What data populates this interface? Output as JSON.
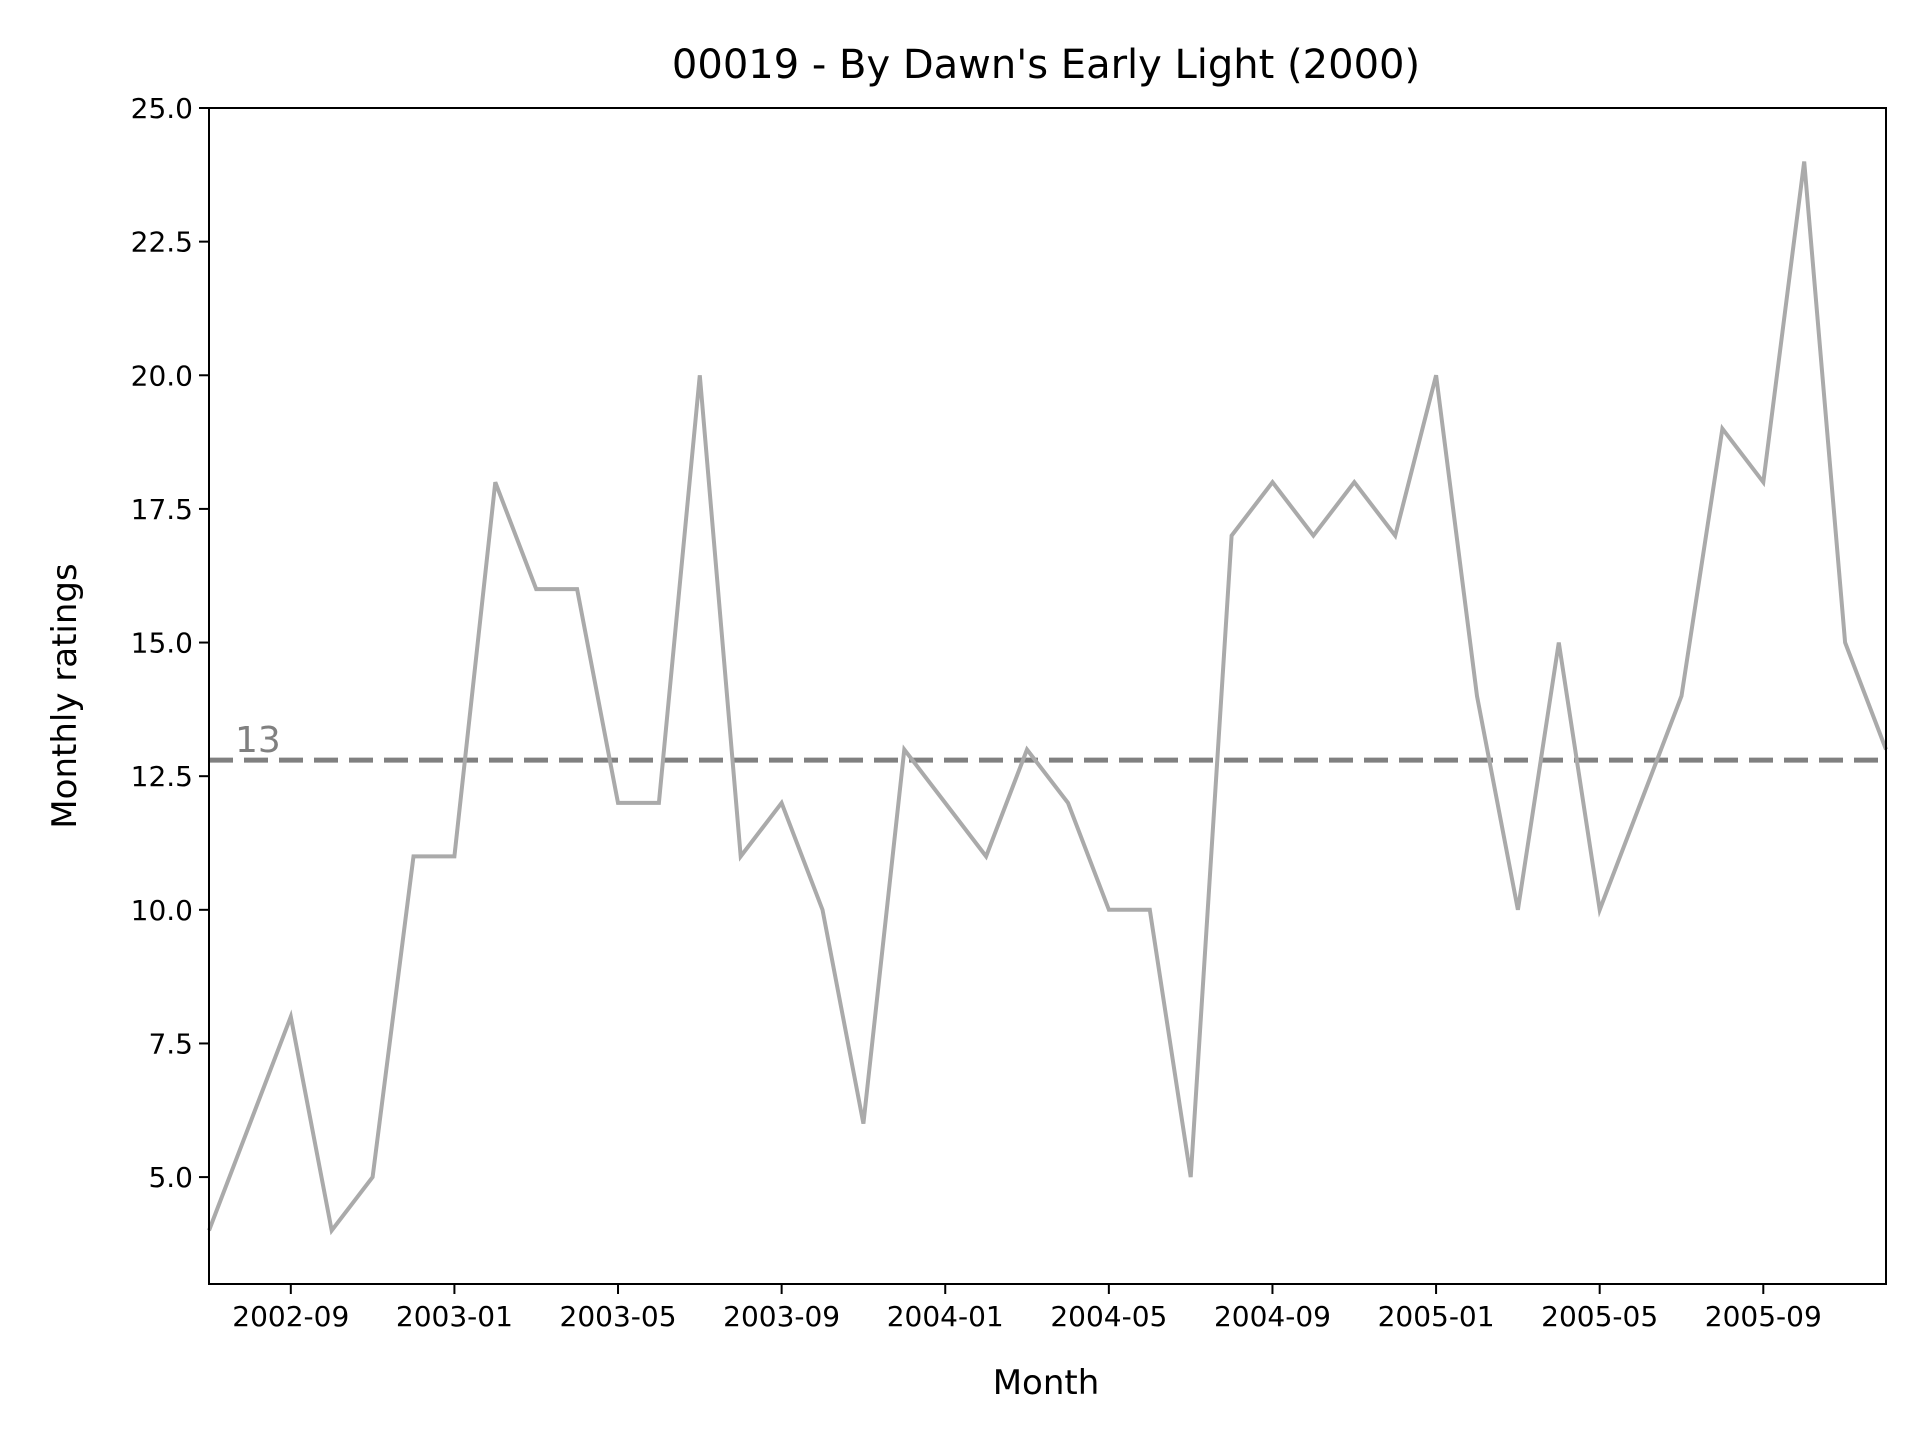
{
  "chart_data": {
    "type": "line",
    "title": "00019 - By Dawn's Early Light (2000)",
    "xlabel": "Month",
    "ylabel": "Monthly ratings",
    "x": [
      "2002-07",
      "2002-08",
      "2002-09",
      "2002-10",
      "2002-11",
      "2002-12",
      "2003-01",
      "2003-02",
      "2003-03",
      "2003-04",
      "2003-05",
      "2003-06",
      "2003-07",
      "2003-08",
      "2003-09",
      "2003-10",
      "2003-11",
      "2003-12",
      "2004-01",
      "2004-02",
      "2004-03",
      "2004-04",
      "2004-05",
      "2004-06",
      "2004-07",
      "2004-08",
      "2004-09",
      "2004-10",
      "2004-11",
      "2004-12",
      "2005-01",
      "2005-02",
      "2005-03",
      "2005-04",
      "2005-05",
      "2005-06",
      "2005-07",
      "2005-08",
      "2005-09",
      "2005-10",
      "2005-11",
      "2005-12"
    ],
    "series": [
      {
        "values": [
          4,
          6,
          8,
          4,
          5,
          11,
          11,
          18,
          16,
          16,
          12,
          12,
          20,
          11,
          12,
          10,
          6,
          13,
          12,
          11,
          13,
          12,
          10,
          10,
          5,
          17,
          18,
          17,
          18,
          17,
          20,
          14,
          10,
          15,
          10,
          12,
          14,
          19,
          18,
          24,
          15,
          13
        ],
        "color": "#aaaaaa"
      }
    ],
    "reference_line": {
      "value": 12.8,
      "label": "13",
      "style": "dashed",
      "color": "#808080"
    },
    "xticks": [
      "2002-09",
      "2003-01",
      "2003-05",
      "2003-09",
      "2004-01",
      "2004-05",
      "2004-09",
      "2005-01",
      "2005-05",
      "2005-09"
    ],
    "yticks": [
      "5.0",
      "7.5",
      "10.0",
      "12.5",
      "15.0",
      "17.5",
      "20.0",
      "22.5",
      "25.0"
    ],
    "ylim": [
      3,
      25
    ],
    "xlim": [
      "2002-07",
      "2005-12"
    ],
    "grid": false,
    "legend": "none"
  }
}
